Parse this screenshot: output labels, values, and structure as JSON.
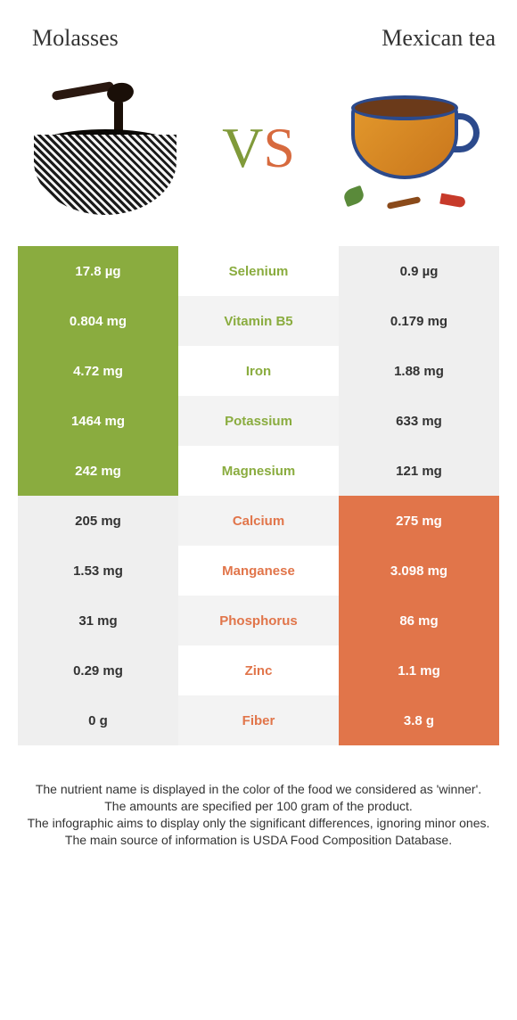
{
  "left_title": "Molasses",
  "right_title": "Mexican tea",
  "vs_v": "V",
  "vs_s": "S",
  "colors": {
    "left": "#8aac3f",
    "right": "#e1754a",
    "left_dim": "#efefef",
    "right_dim": "#efefef",
    "left_text_on_dim": "#333333",
    "right_text_on_dim": "#333333",
    "mid_left_text": "#8aac3f",
    "mid_right_text": "#e1754a",
    "row_mid_odd": "#ffffff",
    "row_mid_even": "#f3f3f3"
  },
  "rows": [
    {
      "nutrient": "Selenium",
      "left": "17.8 µg",
      "right": "0.9 µg",
      "winner": "left"
    },
    {
      "nutrient": "Vitamin B5",
      "left": "0.804 mg",
      "right": "0.179 mg",
      "winner": "left"
    },
    {
      "nutrient": "Iron",
      "left": "4.72 mg",
      "right": "1.88 mg",
      "winner": "left"
    },
    {
      "nutrient": "Potassium",
      "left": "1464 mg",
      "right": "633 mg",
      "winner": "left"
    },
    {
      "nutrient": "Magnesium",
      "left": "242 mg",
      "right": "121 mg",
      "winner": "left"
    },
    {
      "nutrient": "Calcium",
      "left": "205 mg",
      "right": "275 mg",
      "winner": "right"
    },
    {
      "nutrient": "Manganese",
      "left": "1.53 mg",
      "right": "3.098 mg",
      "winner": "right"
    },
    {
      "nutrient": "Phosphorus",
      "left": "31 mg",
      "right": "86 mg",
      "winner": "right"
    },
    {
      "nutrient": "Zinc",
      "left": "0.29 mg",
      "right": "1.1 mg",
      "winner": "right"
    },
    {
      "nutrient": "Fiber",
      "left": "0 g",
      "right": "3.8 g",
      "winner": "right"
    }
  ],
  "footer_lines": [
    "The nutrient name is displayed in the color of the food we considered as 'winner'.",
    "The amounts are specified per 100 gram of the product.",
    "The infographic aims to display only the significant differences, ignoring minor ones.",
    "The main source of information is USDA Food Composition Database."
  ]
}
